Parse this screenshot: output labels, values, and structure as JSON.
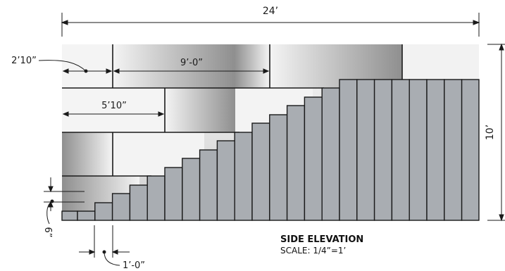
{
  "drawing": {
    "overall_width_label": "24’",
    "overall_height_label": "10’",
    "labels": {
      "block_a": "2’10”",
      "block_b": "9’-0”",
      "block_c": "5’10”",
      "rise": "6”",
      "tread": "1’-0”"
    },
    "title": "SIDE ELEVATION",
    "scale": "SCALE: 1/4”=1’",
    "colors": {
      "wall_light": "#f2f2f2",
      "wall_shade": "#9a9a9a",
      "stair_fill": "#a9adb2",
      "line": "#1a1a1a"
    }
  }
}
